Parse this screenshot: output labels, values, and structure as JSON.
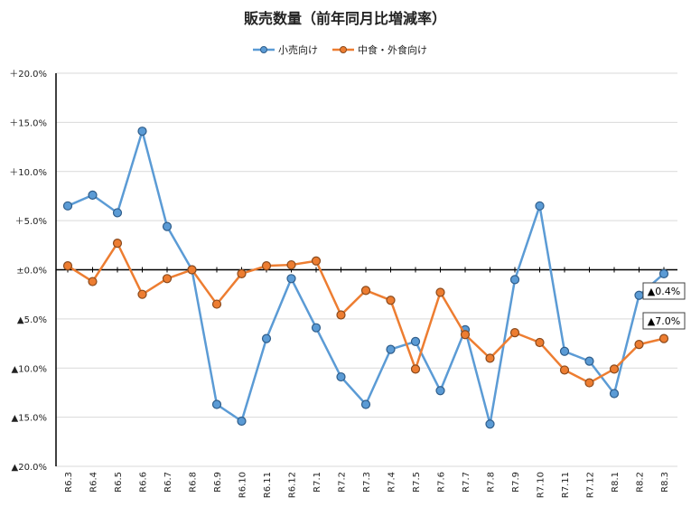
{
  "chart_data": {
    "type": "line",
    "title": "販売数量（前年同月比増減率）",
    "ylim": [
      -20,
      20
    ],
    "ytick_values": [
      20,
      15,
      10,
      5,
      0,
      -5,
      -10,
      -15,
      -20
    ],
    "ytick_labels": [
      "＋20.0%",
      "＋15.0%",
      "＋10.0%",
      "＋5.0%",
      "±0.0%",
      "▲5.0%",
      "▲10.0%",
      "▲15.0%",
      "▲20.0%"
    ],
    "categories": [
      "R6.3",
      "R6.4",
      "R6.5",
      "R6.6",
      "R6.7",
      "R6.8",
      "R6.9",
      "R6.10",
      "R6.11",
      "R6.12",
      "R7.1",
      "R7.2",
      "R7.3",
      "R7.4",
      "R7.5",
      "R7.6",
      "R7.7",
      "R7.8",
      "R7.9",
      "R7.10",
      "R7.11",
      "R7.12",
      "R8.1",
      "R8.2",
      "R8.3"
    ],
    "grid": true,
    "legend_position": "top-center",
    "series": [
      {
        "name": "小売向け",
        "color": "#5b9bd5",
        "values": [
          6.5,
          7.6,
          5.8,
          14.1,
          4.4,
          0.0,
          -13.7,
          -15.4,
          -7.0,
          -0.9,
          -5.9,
          -10.9,
          -13.7,
          -8.1,
          -7.3,
          -12.3,
          -6.1,
          -15.7,
          -1.0,
          6.5,
          -8.3,
          -9.3,
          -12.6,
          -2.6,
          -0.4
        ]
      },
      {
        "name": "中食・外食向け",
        "color": "#ed7d31",
        "values": [
          0.4,
          -1.2,
          2.7,
          -2.5,
          -0.9,
          0.0,
          -3.5,
          -0.4,
          0.4,
          0.5,
          0.9,
          -4.6,
          -2.1,
          -3.1,
          -10.1,
          -2.3,
          -6.6,
          -9.0,
          -6.4,
          -7.4,
          -10.2,
          -11.5,
          -10.1,
          -7.6,
          -7.0
        ]
      }
    ],
    "annotations": [
      {
        "label": "▲0.4%",
        "series": 0,
        "index": 24
      },
      {
        "label": "▲7.0%",
        "series": 1,
        "index": 24
      }
    ]
  }
}
